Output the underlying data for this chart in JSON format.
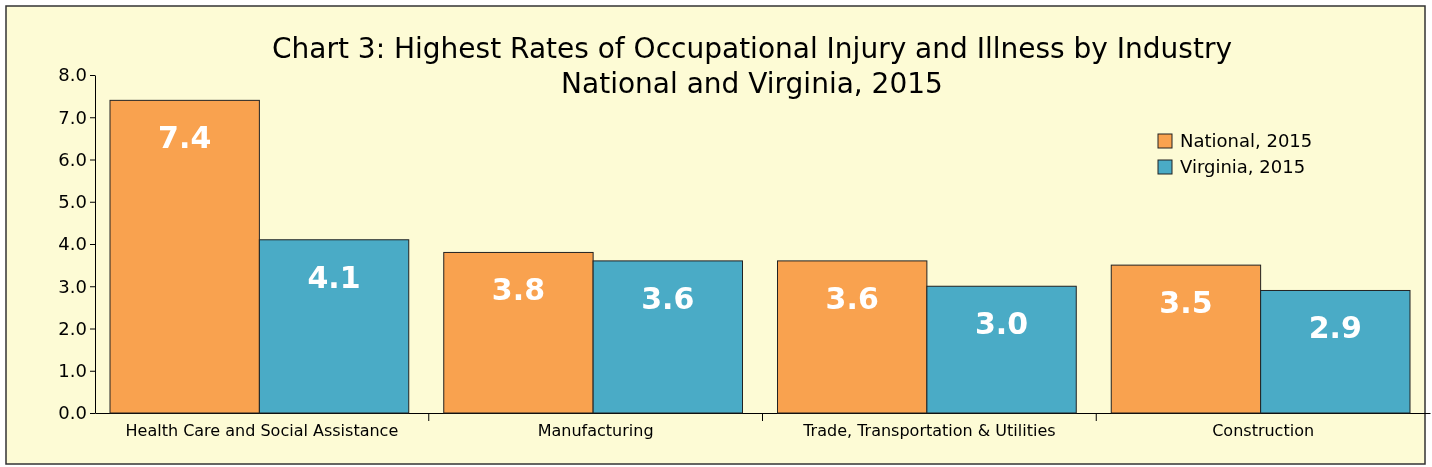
{
  "chart_data": {
    "type": "bar",
    "title": "Chart 3: Highest Rates of Occupational Injury and Illness by Industry",
    "subtitle": "National and Virginia, 2015",
    "categories": [
      "Health Care and Social Assistance",
      "Manufacturing",
      "Trade, Transportation & Utilities",
      "Construction"
    ],
    "series": [
      {
        "name": "National, 2015",
        "color": "#f9a24f",
        "values": [
          7.4,
          3.8,
          3.6,
          3.5
        ],
        "value_labels": [
          "7.4",
          "3.8",
          "3.6",
          "3.5"
        ]
      },
      {
        "name": "Virginia, 2015",
        "color": "#4aabc6",
        "values": [
          4.1,
          3.6,
          3.0,
          2.9
        ],
        "value_labels": [
          "4.1",
          "3.6",
          "3.0",
          "2.9"
        ]
      }
    ],
    "ylim": [
      0,
      8
    ],
    "yticks": [
      {
        "value": 0,
        "label": "0.0"
      },
      {
        "value": 1,
        "label": "1.0"
      },
      {
        "value": 2,
        "label": "2.0"
      },
      {
        "value": 3,
        "label": "3.0"
      },
      {
        "value": 4,
        "label": "4.0"
      },
      {
        "value": 5,
        "label": "5.0"
      },
      {
        "value": 6,
        "label": "6.0"
      },
      {
        "value": 7,
        "label": "7.0"
      },
      {
        "value": 8,
        "label": "8.0"
      }
    ],
    "grid": false,
    "legend": "top right"
  }
}
